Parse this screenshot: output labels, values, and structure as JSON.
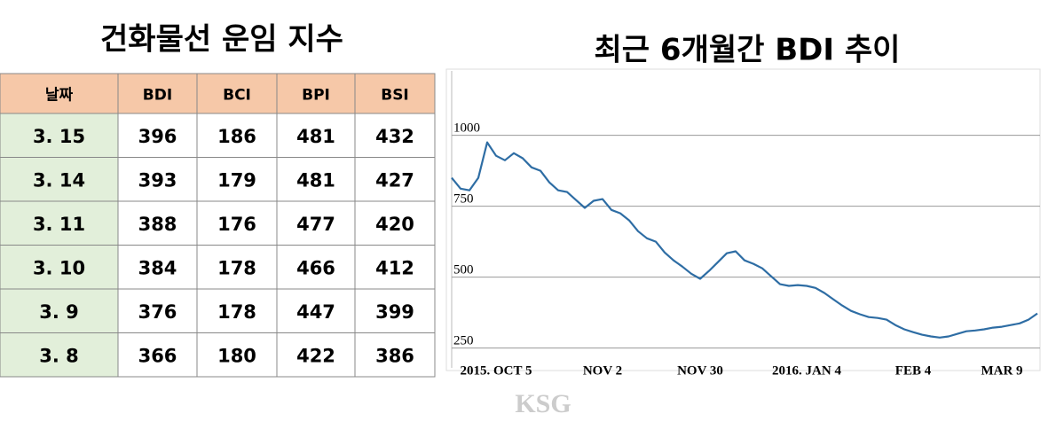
{
  "table": {
    "title": "건화물선 운임 지수",
    "header": [
      "날짜",
      "BDI",
      "BCI",
      "BPI",
      "BSI"
    ],
    "rows": [
      [
        "3. 15",
        "396",
        "186",
        "481",
        "432"
      ],
      [
        "3. 14",
        "393",
        "179",
        "481",
        "427"
      ],
      [
        "3. 11",
        "388",
        "176",
        "477",
        "420"
      ],
      [
        "3. 10",
        "384",
        "178",
        "466",
        "412"
      ],
      [
        "3. 9",
        "376",
        "178",
        "447",
        "399"
      ],
      [
        "3. 8",
        "366",
        "180",
        "422",
        "386"
      ]
    ]
  },
  "chart_data": {
    "type": "line",
    "title": "최근 6개월간 BDI 추이",
    "categories": [
      null,
      null,
      null,
      null,
      null,
      "2015. OCT 5",
      null,
      null,
      null,
      null,
      null,
      null,
      null,
      null,
      null,
      null,
      null,
      "NOV 2",
      null,
      null,
      null,
      null,
      null,
      null,
      null,
      null,
      null,
      null,
      "NOV 30",
      null,
      null,
      null,
      null,
      null,
      null,
      null,
      null,
      null,
      null,
      null,
      "2016. JAN 4",
      null,
      null,
      null,
      null,
      null,
      null,
      null,
      null,
      null,
      null,
      null,
      "FEB 4",
      null,
      null,
      null,
      null,
      null,
      null,
      null,
      null,
      null,
      "MAR 9",
      null,
      null,
      null,
      null
    ],
    "values": [
      850,
      812,
      806,
      850,
      975,
      928,
      912,
      937,
      919,
      887,
      875,
      834,
      806,
      800,
      772,
      744,
      769,
      775,
      737,
      725,
      700,
      662,
      637,
      625,
      587,
      559,
      537,
      512,
      494,
      522,
      553,
      584,
      591,
      559,
      547,
      531,
      503,
      475,
      469,
      472,
      469,
      462,
      444,
      422,
      400,
      381,
      369,
      359,
      356,
      350,
      331,
      316,
      306,
      297,
      291,
      287,
      291,
      300,
      309,
      312,
      316,
      322,
      325,
      331,
      337,
      350,
      372
    ],
    "color": "#2e6da4",
    "ylim": [
      180,
      1227
    ],
    "yticks": [
      250,
      500,
      750,
      1000
    ],
    "grid": true
  },
  "watermark": "KSG"
}
